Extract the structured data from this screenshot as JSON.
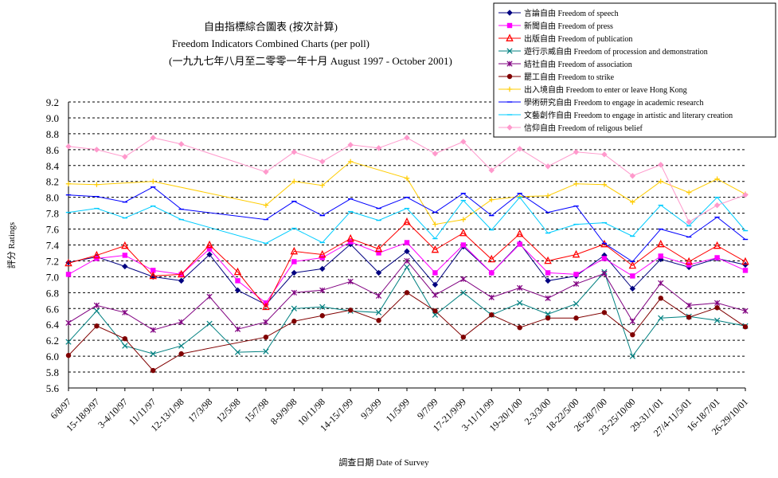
{
  "chart_data": {
    "type": "line",
    "title": "自由指標綜合圖表 (按次計算)",
    "subtitle": "Freedom Indicators Combined Charts (per poll)",
    "subtitle2": "(一九九七年八月至二零零一年十月 August 1997 - October 2001)",
    "xlabel": "調查日期 Date of Survey",
    "ylabel": "評分 Ratings",
    "ylim": [
      5.6,
      9.2
    ],
    "ytick_step": 0.2,
    "yticks": [
      "5.6",
      "5.8",
      "6.0",
      "6.2",
      "6.4",
      "6.6",
      "6.8",
      "7.0",
      "7.2",
      "7.4",
      "7.6",
      "7.8",
      "8.0",
      "8.2",
      "8.4",
      "8.6",
      "8.8",
      "9.0",
      "9.2"
    ],
    "grid": true,
    "legend_position": "top-right",
    "x": [
      "6/8/97",
      "15-18/9/97",
      "3-4/10/97",
      "11/11/97",
      "12-13/1/98",
      "17/3/98",
      "12/5/98",
      "15/7/98",
      "8-9/9/98",
      "10/11/98",
      "14-15/1/99",
      "9/3/99",
      "11/5/99",
      "9/7/99",
      "17-21/9/99",
      "3-11/11/99",
      "19-20/1/00",
      "2-3/3/00",
      "18-22/5/00",
      "26-28/7/00",
      "23-25/10/00",
      "29-31/1/01",
      "27/4-11/5/01",
      "16-18/7/01",
      "26-29/10/01"
    ],
    "xticks_shown": [
      "6/8/97",
      "15-18/9/97",
      "3-4/10/97",
      "11/11/97",
      "12-13/1/98",
      "17/3/98",
      "12/5/98",
      "15/7/98",
      "8-9/9/98",
      "10/11/98",
      "14-15/1/99",
      "9/3/99",
      "11/5/99",
      "9/7/99",
      "17-21/9/99",
      "3-11/11/99",
      "19-20/1/00",
      "2-3/3/00",
      "18-22/5/00",
      "26-28/7/00",
      "23-25/10/00",
      "29-31/1/01",
      "27/4-11/5/01",
      "16-18/7/01",
      "26-29/10/01"
    ],
    "series": [
      {
        "name": "言論自由 Freedom of speech",
        "color": "#000080",
        "marker": "diamond",
        "values": [
          7.18,
          7.25,
          7.13,
          7.0,
          6.95,
          7.28,
          6.83,
          6.65,
          7.05,
          7.1,
          7.41,
          7.05,
          7.32,
          6.9,
          7.38,
          7.05,
          7.42,
          6.95,
          7.01,
          7.27,
          6.85,
          7.22,
          7.12,
          7.23,
          7.15
        ]
      },
      {
        "name": "新聞自由 Freedom of press",
        "color": "#ff00ff",
        "marker": "square",
        "values": [
          7.03,
          7.23,
          7.27,
          7.08,
          7.03,
          7.35,
          6.95,
          6.67,
          7.19,
          7.24,
          7.44,
          7.3,
          7.43,
          7.05,
          7.4,
          7.05,
          7.41,
          7.05,
          7.03,
          7.23,
          7.01,
          7.26,
          7.15,
          7.24,
          7.08
        ]
      },
      {
        "name": "出版自由 Freedom of publication",
        "color": "#ff0000",
        "marker": "triangle",
        "values": [
          7.17,
          7.27,
          7.39,
          7.01,
          7.03,
          7.4,
          7.06,
          6.62,
          7.32,
          7.28,
          7.48,
          7.35,
          7.69,
          7.34,
          7.55,
          7.22,
          7.54,
          7.2,
          7.28,
          7.41,
          7.14,
          7.41,
          7.19,
          7.39,
          7.19
        ]
      },
      {
        "name": "遊行示威自由 Freedom of procession and demonstration",
        "color": "#008080",
        "marker": "x",
        "values": [
          6.18,
          6.57,
          6.13,
          6.03,
          6.13,
          6.41,
          6.05,
          6.06,
          6.6,
          6.62,
          6.57,
          6.55,
          7.12,
          6.52,
          6.8,
          6.52,
          6.67,
          6.53,
          6.66,
          7.06,
          6.0,
          6.48,
          6.5,
          6.45,
          6.38
        ]
      },
      {
        "name": "結社自由 Freedom of association",
        "color": "#800080",
        "marker": "star",
        "values": [
          6.42,
          6.64,
          6.55,
          6.33,
          6.43,
          6.75,
          6.34,
          6.43,
          6.8,
          6.83,
          6.94,
          6.76,
          7.2,
          6.77,
          6.97,
          6.74,
          6.86,
          6.73,
          6.91,
          7.04,
          6.44,
          6.92,
          6.64,
          6.67,
          6.57
        ]
      },
      {
        "name": "罷工自由 Freedom to strike",
        "color": "#800000",
        "marker": "circle",
        "values": [
          6.01,
          6.38,
          6.22,
          5.82,
          6.03,
          null,
          null,
          6.24,
          6.44,
          6.51,
          6.58,
          6.45,
          6.8,
          6.57,
          6.24,
          6.52,
          6.36,
          6.48,
          6.48,
          6.55,
          6.27,
          6.73,
          6.49,
          6.61,
          6.37
        ]
      },
      {
        "name": "出入境自由 Freedom to enter or leave Hong Kong",
        "color": "#ffcc00",
        "marker": "plus",
        "values": [
          8.17,
          8.16,
          null,
          8.2,
          null,
          null,
          null,
          7.9,
          8.2,
          8.15,
          8.45,
          null,
          8.24,
          7.66,
          7.72,
          7.97,
          8.01,
          8.02,
          8.17,
          8.16,
          7.94,
          8.2,
          8.06,
          8.23,
          8.04
        ]
      },
      {
        "name": "學術研究自由 Freedom to engage in academic research",
        "color": "#0000ff",
        "marker": "dash",
        "values": [
          8.03,
          8.01,
          7.94,
          8.13,
          7.85,
          null,
          null,
          7.72,
          7.95,
          7.77,
          7.98,
          7.86,
          8.0,
          7.81,
          8.05,
          7.77,
          8.05,
          7.81,
          7.89,
          7.42,
          7.19,
          7.6,
          7.5,
          7.75,
          7.47
        ]
      },
      {
        "name": "文藝創作自由 Freedom to engage in artistic and literary creation",
        "color": "#00ccff",
        "marker": "dash",
        "values": [
          7.81,
          7.86,
          7.74,
          7.89,
          7.72,
          null,
          null,
          7.42,
          7.61,
          7.43,
          7.82,
          7.71,
          7.86,
          7.48,
          7.96,
          7.59,
          8.0,
          7.55,
          7.66,
          7.68,
          7.51,
          7.9,
          7.64,
          8.0,
          7.58
        ]
      },
      {
        "name": "信仰自由 Freedom of religous belief",
        "color": "#ff99cc",
        "marker": "diamond",
        "values": [
          8.64,
          8.6,
          8.51,
          8.75,
          8.67,
          null,
          null,
          8.32,
          8.57,
          8.45,
          8.66,
          8.62,
          8.75,
          8.55,
          8.7,
          8.34,
          8.61,
          8.39,
          8.57,
          8.54,
          8.27,
          8.41,
          7.69,
          7.9,
          8.03
        ]
      }
    ]
  }
}
